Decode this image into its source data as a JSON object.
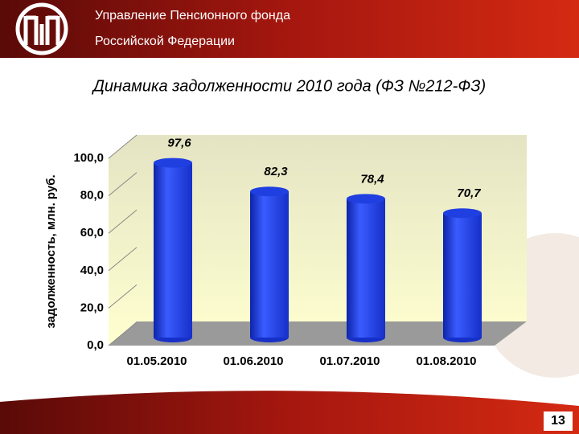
{
  "header": {
    "line1": "Управление Пенсионного фонда",
    "line2": "Российской Федерации"
  },
  "page_number": 13,
  "chart_data": {
    "type": "bar",
    "title": "Динамика задолженности 2010 года (ФЗ №212-ФЗ)",
    "y_label": "задолженность, млн. руб.",
    "categories": [
      "01.05.2010",
      "01.06.2010",
      "01.07.2010",
      "01.08.2010"
    ],
    "values": [
      97.6,
      82.3,
      78.4,
      70.7
    ],
    "value_labels": [
      "97,6",
      "82,3",
      "78,4",
      "70,7"
    ],
    "color": "#1f3fe0",
    "ylim": [
      0,
      100
    ],
    "yticks": [
      {
        "value": 0,
        "label": "0,0"
      },
      {
        "value": 20,
        "label": "20,0"
      },
      {
        "value": 40,
        "label": "40,0"
      },
      {
        "value": 60,
        "label": "60,0"
      },
      {
        "value": 80,
        "label": "80,0"
      },
      {
        "value": 100,
        "label": "100,0"
      }
    ],
    "grid": true
  }
}
